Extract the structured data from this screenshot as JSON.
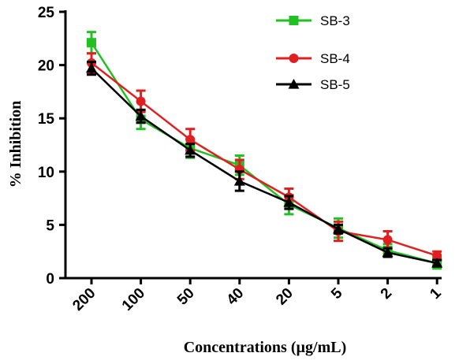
{
  "chart_data": {
    "type": "line",
    "title": "",
    "xlabel": "Concentrations (µg/mL)",
    "ylabel": "% Inhibition",
    "categories": [
      "200",
      "100",
      "50",
      "40",
      "20",
      "5",
      "2",
      "1"
    ],
    "ylim": [
      0,
      25
    ],
    "yticks": [
      0,
      5,
      10,
      15,
      20,
      25
    ],
    "grid": false,
    "legend": "top-right",
    "series": [
      {
        "name": "SB-3",
        "color": "#22c022",
        "marker": "square",
        "values": [
          22.1,
          14.9,
          12.2,
          10.6,
          6.9,
          4.7,
          2.6,
          1.4
        ],
        "errors": [
          1.0,
          0.9,
          0.9,
          0.9,
          0.9,
          0.9,
          0.6,
          0.5
        ]
      },
      {
        "name": "SB-4",
        "color": "#e02020",
        "marker": "circle",
        "values": [
          20.2,
          16.6,
          13.0,
          10.2,
          7.6,
          4.4,
          3.6,
          2.1
        ],
        "errors": [
          0.9,
          1.0,
          1.0,
          0.9,
          0.8,
          0.9,
          0.8,
          0.4
        ]
      },
      {
        "name": "SB-5",
        "color": "#000000",
        "marker": "triangle",
        "values": [
          19.7,
          15.2,
          12.0,
          9.1,
          7.1,
          4.6,
          2.4,
          1.4
        ],
        "errors": [
          0.6,
          0.6,
          0.6,
          0.9,
          0.6,
          0.4,
          0.4,
          0.3
        ]
      }
    ]
  }
}
